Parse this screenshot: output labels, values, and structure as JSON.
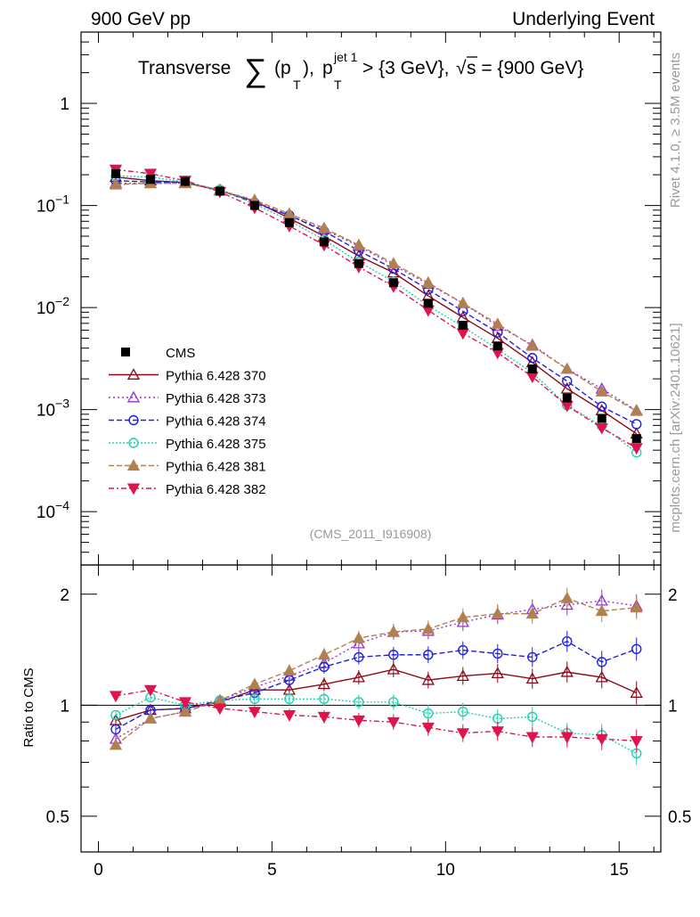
{
  "header": {
    "left": "900 GeV pp",
    "right": "Underlying Event",
    "side_top": "Rivet 4.1.0, ≥ 3.5M events",
    "side_bottom": "mcplots.cern.ch [arXiv:2401.10621]",
    "analysis_tag": "(CMS_2011_I916908)"
  },
  "chart_data": {
    "type": "line",
    "title": {
      "word": "Transverse",
      "sum": "∑",
      "pt_open": "(p",
      "sub_T": "T",
      "pt_close": "),",
      "p": "p",
      "sup_jet": "jet 1",
      "sub_T2": "T",
      "cut": "> {3 GeV},",
      "sqrt": "√",
      "s_part": "s = {900 GeV}"
    },
    "xlabel": "",
    "ylabel_main": "",
    "ylabel_ratio": "Ratio to CMS",
    "xlim": [
      -0.5,
      16.2
    ],
    "ylim_main": [
      3e-05,
      5
    ],
    "yscale_main": "log",
    "ylim_ratio": [
      0.4,
      2.4
    ],
    "yscale_ratio": "log",
    "x_ticks": [
      "0",
      "5",
      "10",
      "15"
    ],
    "x_tick_values": [
      0,
      5,
      10,
      15
    ],
    "y_main_ticks": [
      {
        "value": 1,
        "mant": "1",
        "exp": ""
      },
      {
        "value": 0.1,
        "mant": "10",
        "exp": "−1"
      },
      {
        "value": 0.01,
        "mant": "10",
        "exp": "−2"
      },
      {
        "value": 0.001,
        "mant": "10",
        "exp": "−3"
      },
      {
        "value": 0.0001,
        "mant": "10",
        "exp": "−4"
      }
    ],
    "y_ratio_ticks": [
      {
        "value": 2,
        "label": "2"
      },
      {
        "value": 1,
        "label": "1"
      },
      {
        "value": 0.5,
        "label": "0.5"
      }
    ],
    "x": [
      0.5,
      1.5,
      2.5,
      3.5,
      4.5,
      5.5,
      6.5,
      7.5,
      8.5,
      9.5,
      10.5,
      11.5,
      12.5,
      13.5,
      14.5,
      15.5
    ],
    "data": {
      "name": "CMS",
      "color": "#000000",
      "values": [
        0.205,
        0.18,
        0.172,
        0.138,
        0.1,
        0.068,
        0.044,
        0.027,
        0.0175,
        0.011,
        0.0067,
        0.0042,
        0.0025,
        0.0013,
        0.00082,
        0.00052
      ]
    },
    "series": [
      {
        "name": "Pythia 6.428 370",
        "color": "#8b0a1a",
        "marker": "triangle-open",
        "dash": "",
        "values": [
          0.19,
          0.175,
          0.168,
          0.14,
          0.11,
          0.075,
          0.05,
          0.032,
          0.022,
          0.013,
          0.008,
          0.005,
          0.0029,
          0.0016,
          0.00098,
          0.00058
        ],
        "ratio": [
          0.91,
          0.97,
          0.98,
          1.02,
          1.1,
          1.1,
          1.14,
          1.19,
          1.25,
          1.17,
          1.2,
          1.22,
          1.18,
          1.23,
          1.19,
          1.08
        ]
      },
      {
        "name": "Pythia 6.428 373",
        "color": "#9932cc",
        "marker": "triangle-open",
        "dash": "2,3",
        "values": [
          0.165,
          0.165,
          0.165,
          0.142,
          0.11,
          0.08,
          0.058,
          0.04,
          0.026,
          0.017,
          0.011,
          0.0066,
          0.0043,
          0.0025,
          0.0016,
          0.00098
        ],
        "ratio": [
          0.81,
          0.92,
          0.96,
          1.03,
          1.12,
          1.2,
          1.3,
          1.47,
          1.58,
          1.59,
          1.68,
          1.76,
          1.82,
          1.87,
          1.92,
          1.86
        ]
      },
      {
        "name": "Pythia 6.428 374",
        "color": "#1f1fe0",
        "marker": "circle-open",
        "dash": "6,3",
        "values": [
          0.175,
          0.17,
          0.167,
          0.141,
          0.106,
          0.08,
          0.056,
          0.036,
          0.024,
          0.015,
          0.0092,
          0.0057,
          0.0032,
          0.0019,
          0.00107,
          0.00072
        ],
        "ratio": [
          0.86,
          0.97,
          0.98,
          1.03,
          1.08,
          1.17,
          1.27,
          1.35,
          1.37,
          1.37,
          1.41,
          1.38,
          1.35,
          1.49,
          1.31,
          1.42
        ]
      },
      {
        "name": "Pythia 6.428 375",
        "color": "#20d0b0",
        "marker": "circle-open",
        "dash": "2,2",
        "values": [
          0.195,
          0.19,
          0.17,
          0.143,
          0.104,
          0.071,
          0.046,
          0.028,
          0.018,
          0.0104,
          0.0065,
          0.0039,
          0.0023,
          0.0011,
          0.00069,
          0.00038
        ],
        "ratio": [
          0.94,
          1.05,
          1.0,
          1.03,
          1.04,
          1.04,
          1.04,
          1.02,
          1.02,
          0.95,
          0.96,
          0.92,
          0.93,
          0.84,
          0.83,
          0.74
        ]
      },
      {
        "name": "Pythia 6.428 381",
        "color": "#b08050",
        "marker": "triangle-filled",
        "dash": "6,3",
        "values": [
          0.16,
          0.165,
          0.165,
          0.14,
          0.113,
          0.083,
          0.06,
          0.041,
          0.027,
          0.0175,
          0.011,
          0.0069,
          0.0042,
          0.0025,
          0.0015,
          0.00097
        ],
        "ratio": [
          0.78,
          0.92,
          0.96,
          1.03,
          1.14,
          1.24,
          1.37,
          1.52,
          1.58,
          1.61,
          1.73,
          1.77,
          1.77,
          1.95,
          1.8,
          1.84
        ]
      },
      {
        "name": "Pythia 6.428 382",
        "color": "#e0144c",
        "marker": "triangle-down-filled",
        "dash": "6,3,2,3",
        "values": [
          0.225,
          0.205,
          0.175,
          0.136,
          0.095,
          0.063,
          0.041,
          0.025,
          0.0161,
          0.0094,
          0.0056,
          0.0036,
          0.0021,
          0.00109,
          0.00066,
          0.00042
        ],
        "ratio": [
          1.06,
          1.1,
          1.02,
          0.98,
          0.96,
          0.94,
          0.93,
          0.91,
          0.9,
          0.87,
          0.84,
          0.85,
          0.82,
          0.82,
          0.81,
          0.8
        ]
      }
    ],
    "legend_position": "middle-left"
  }
}
